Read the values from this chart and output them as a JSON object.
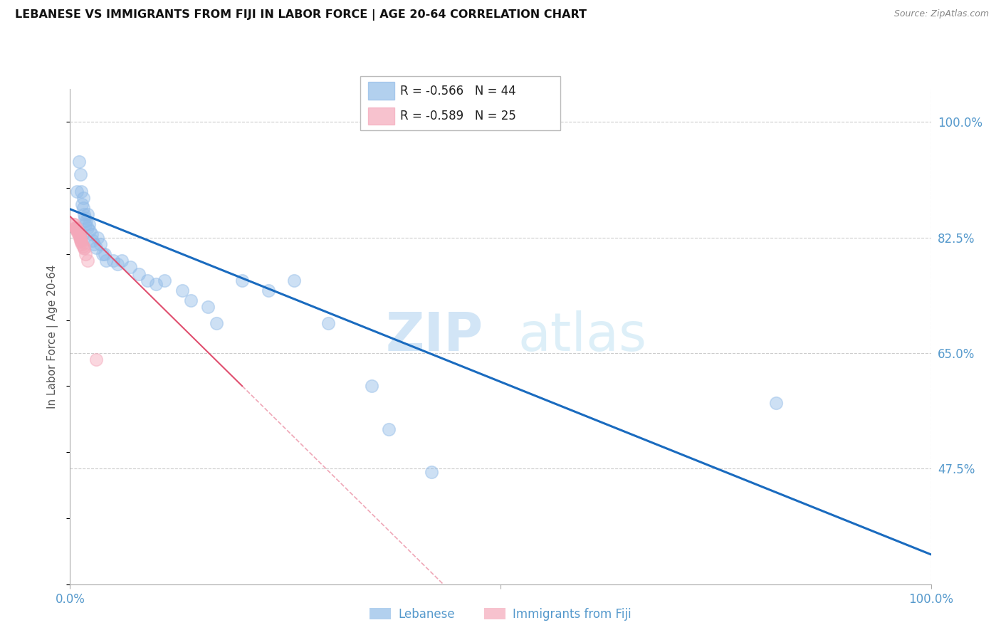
{
  "title": "LEBANESE VS IMMIGRANTS FROM FIJI IN LABOR FORCE | AGE 20-64 CORRELATION CHART",
  "source": "Source: ZipAtlas.com",
  "ylabel": "In Labor Force | Age 20-64",
  "xlim": [
    0.0,
    1.0
  ],
  "ylim": [
    0.3,
    1.05
  ],
  "y_ticks_right": [
    1.0,
    0.825,
    0.65,
    0.475
  ],
  "y_tick_labels_right": [
    "100.0%",
    "82.5%",
    "65.0%",
    "47.5%"
  ],
  "legend1_r": "-0.566",
  "legend1_n": "44",
  "legend2_r": "-0.589",
  "legend2_n": "25",
  "legend_label1": "Lebanese",
  "legend_label2": "Immigrants from Fiji",
  "blue_color": "#92bce8",
  "pink_color": "#f4a8ba",
  "blue_line_color": "#1a6bbf",
  "pink_line_color": "#e05070",
  "watermark_zip": "ZIP",
  "watermark_atlas": "atlas",
  "blue_scatter_x": [
    0.008,
    0.01,
    0.012,
    0.013,
    0.014,
    0.015,
    0.015,
    0.016,
    0.017,
    0.018,
    0.019,
    0.02,
    0.02,
    0.022,
    0.023,
    0.025,
    0.026,
    0.028,
    0.03,
    0.032,
    0.035,
    0.038,
    0.04,
    0.042,
    0.05,
    0.055,
    0.06,
    0.07,
    0.08,
    0.09,
    0.1,
    0.11,
    0.13,
    0.14,
    0.16,
    0.17,
    0.2,
    0.23,
    0.26,
    0.3,
    0.35,
    0.82,
    0.37,
    0.42
  ],
  "blue_scatter_y": [
    0.895,
    0.94,
    0.92,
    0.895,
    0.875,
    0.87,
    0.885,
    0.86,
    0.855,
    0.845,
    0.85,
    0.84,
    0.86,
    0.845,
    0.835,
    0.83,
    0.82,
    0.815,
    0.81,
    0.825,
    0.815,
    0.8,
    0.8,
    0.79,
    0.79,
    0.785,
    0.79,
    0.78,
    0.77,
    0.76,
    0.755,
    0.76,
    0.745,
    0.73,
    0.72,
    0.695,
    0.76,
    0.745,
    0.76,
    0.695,
    0.6,
    0.575,
    0.535,
    0.47
  ],
  "pink_scatter_x": [
    0.004,
    0.005,
    0.006,
    0.006,
    0.007,
    0.007,
    0.008,
    0.008,
    0.009,
    0.009,
    0.01,
    0.01,
    0.011,
    0.011,
    0.012,
    0.012,
    0.013,
    0.013,
    0.014,
    0.015,
    0.016,
    0.016,
    0.018,
    0.02,
    0.03
  ],
  "pink_scatter_y": [
    0.845,
    0.845,
    0.84,
    0.84,
    0.84,
    0.838,
    0.838,
    0.835,
    0.835,
    0.832,
    0.832,
    0.828,
    0.828,
    0.825,
    0.825,
    0.82,
    0.82,
    0.818,
    0.815,
    0.812,
    0.81,
    0.808,
    0.8,
    0.79,
    0.64
  ],
  "blue_trend_x0": 0.0,
  "blue_trend_y0": 0.868,
  "blue_trend_x1": 1.0,
  "blue_trend_y1": 0.345,
  "pink_trend_x0": 0.0,
  "pink_trend_y0": 0.857,
  "pink_trend_x1": 0.2,
  "pink_trend_y1": 0.6
}
